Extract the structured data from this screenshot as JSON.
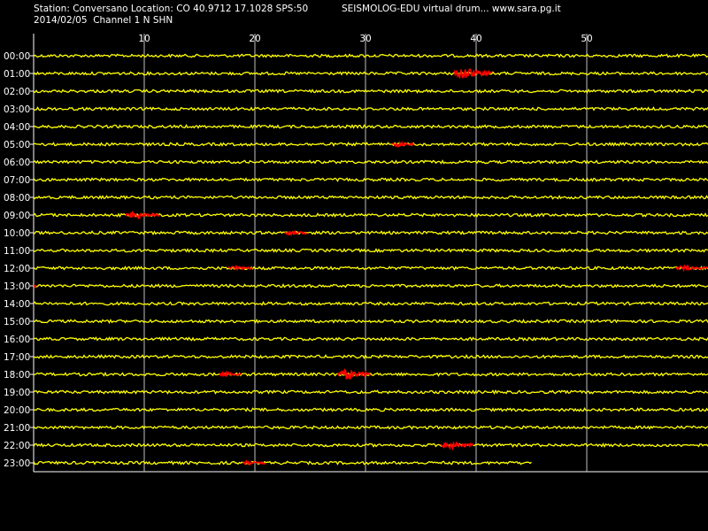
{
  "header": {
    "station_line": "Station: Conversano Location: CO 40.9712 17.1028 SPS:50",
    "date_line": "2014/02/05  Channel 1 N SHN",
    "title": "SEISMOLOG-EDU virtual drum... www.sara.pg.it"
  },
  "chart_data": {
    "type": "line",
    "title": "SEISMOLOG-EDU virtual drum... www.sara.pg.it",
    "xlabel": "",
    "ylabel": "",
    "x_unit": "minutes",
    "xlim": [
      0,
      61
    ],
    "x_ticks": [
      10,
      20,
      30,
      40,
      50
    ],
    "grid": true,
    "background_color": "#000000",
    "trace_color": "#ffff00",
    "event_color": "#ff0000",
    "grid_color": "#c0c0c0",
    "rows": [
      {
        "hour": "00:00",
        "end_minute": 61,
        "events": []
      },
      {
        "hour": "01:00",
        "end_minute": 61,
        "events": [
          {
            "start": 38.0,
            "end": 41.5,
            "amp": 7
          }
        ]
      },
      {
        "hour": "02:00",
        "end_minute": 61,
        "events": []
      },
      {
        "hour": "03:00",
        "end_minute": 61,
        "events": []
      },
      {
        "hour": "04:00",
        "end_minute": 61,
        "events": []
      },
      {
        "hour": "05:00",
        "end_minute": 61,
        "events": [
          {
            "start": 32.4,
            "end": 34.4,
            "amp": 3
          }
        ]
      },
      {
        "hour": "06:00",
        "end_minute": 61,
        "events": []
      },
      {
        "hour": "07:00",
        "end_minute": 61,
        "events": []
      },
      {
        "hour": "08:00",
        "end_minute": 61,
        "events": []
      },
      {
        "hour": "09:00",
        "end_minute": 61,
        "events": [
          {
            "start": 8.3,
            "end": 11.4,
            "amp": 4
          }
        ]
      },
      {
        "hour": "10:00",
        "end_minute": 61,
        "events": [
          {
            "start": 22.7,
            "end": 24.7,
            "amp": 3
          }
        ]
      },
      {
        "hour": "11:00",
        "end_minute": 61,
        "events": []
      },
      {
        "hour": "12:00",
        "end_minute": 61,
        "events": [
          {
            "start": 17.6,
            "end": 19.8,
            "amp": 3
          },
          {
            "start": 58.0,
            "end": 61.0,
            "amp": 3
          }
        ]
      },
      {
        "hour": "13:00",
        "end_minute": 61,
        "events": [
          {
            "start": 0.0,
            "end": 0.3,
            "amp": 2
          }
        ]
      },
      {
        "hour": "14:00",
        "end_minute": 61,
        "events": []
      },
      {
        "hour": "15:00",
        "end_minute": 61,
        "events": []
      },
      {
        "hour": "16:00",
        "end_minute": 61,
        "events": []
      },
      {
        "hour": "17:00",
        "end_minute": 61,
        "events": []
      },
      {
        "hour": "18:00",
        "end_minute": 61,
        "events": [
          {
            "start": 16.8,
            "end": 18.8,
            "amp": 3
          },
          {
            "start": 27.5,
            "end": 30.5,
            "amp": 6
          }
        ]
      },
      {
        "hour": "19:00",
        "end_minute": 61,
        "events": []
      },
      {
        "hour": "20:00",
        "end_minute": 61,
        "events": []
      },
      {
        "hour": "21:00",
        "end_minute": 61,
        "events": []
      },
      {
        "hour": "22:00",
        "end_minute": 61,
        "events": [
          {
            "start": 36.8,
            "end": 39.8,
            "amp": 4
          }
        ]
      },
      {
        "hour": "23:00",
        "end_minute": 45,
        "events": [
          {
            "start": 18.9,
            "end": 21.0,
            "amp": 3
          }
        ]
      }
    ]
  }
}
